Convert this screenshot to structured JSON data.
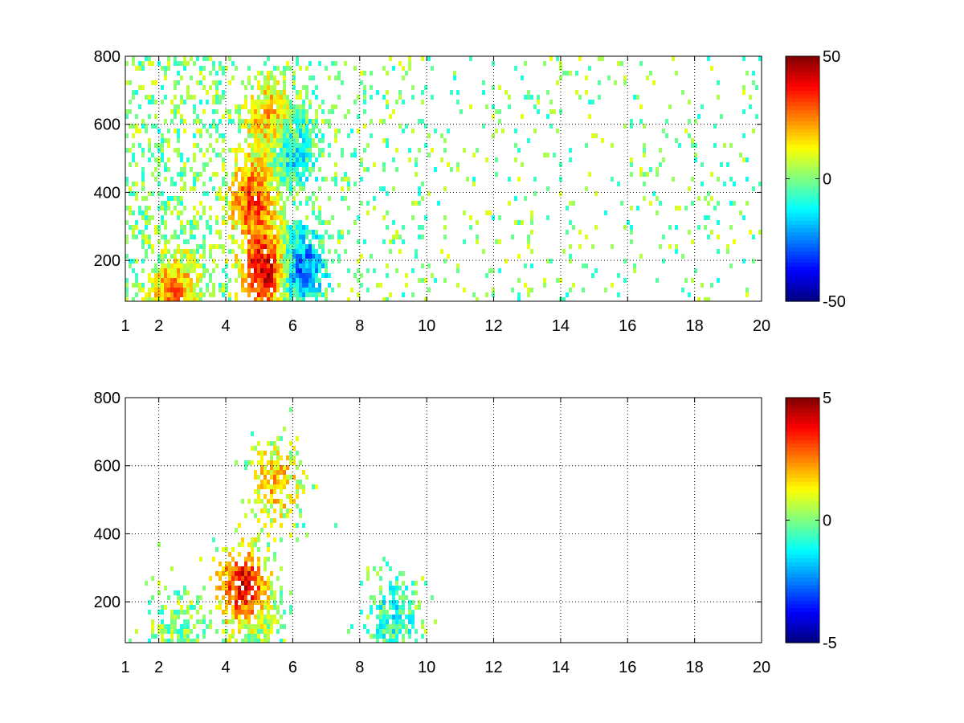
{
  "chart_data": [
    {
      "type": "heatmap",
      "title": "",
      "xlabel": "",
      "ylabel": "",
      "xlim": [
        1,
        20
      ],
      "ylim": [
        80,
        800
      ],
      "grid": true,
      "xticks": [
        1,
        2,
        4,
        6,
        8,
        10,
        12,
        14,
        16,
        18,
        20
      ],
      "xtick_labels": [
        "1",
        "2",
        "4",
        "6",
        "8",
        "10",
        "12",
        "14",
        "16",
        "18",
        "20"
      ],
      "yticks": [
        200,
        400,
        600,
        800
      ],
      "ytick_labels": [
        "200",
        "400",
        "600",
        "800"
      ],
      "colorbar": {
        "colormap": "jet",
        "range": [
          -50,
          50
        ],
        "ticks": [
          -50,
          0,
          50
        ],
        "tick_labels": [
          "-50",
          "0",
          "50"
        ],
        "placement": "right"
      },
      "features": [
        {
          "x": 5.2,
          "y": 170,
          "value": 45
        },
        {
          "x": 4.8,
          "y": 380,
          "value": 30
        },
        {
          "x": 5.3,
          "y": 620,
          "value": 20
        },
        {
          "x": 6.2,
          "y": 180,
          "value": -30
        },
        {
          "x": 6.0,
          "y": 520,
          "value": -15
        },
        {
          "x": 2.5,
          "y": 95,
          "value": 25
        }
      ]
    },
    {
      "type": "heatmap",
      "title": "",
      "xlabel": "",
      "ylabel": "",
      "xlim": [
        1,
        20
      ],
      "ylim": [
        80,
        800
      ],
      "grid": true,
      "xticks": [
        1,
        2,
        4,
        6,
        8,
        10,
        12,
        14,
        16,
        18,
        20
      ],
      "xtick_labels": [
        "1",
        "2",
        "4",
        "6",
        "8",
        "10",
        "12",
        "14",
        "16",
        "18",
        "20"
      ],
      "yticks": [
        200,
        400,
        600,
        800
      ],
      "ytick_labels": [
        "200",
        "400",
        "600",
        "800"
      ],
      "colorbar": {
        "colormap": "jet",
        "range": [
          -5,
          5
        ],
        "ticks": [
          -5,
          0,
          5
        ],
        "tick_labels": [
          "-5",
          "0",
          "5"
        ],
        "placement": "right"
      },
      "features": [
        {
          "x": 4.5,
          "y": 250,
          "value": 4
        },
        {
          "x": 5.5,
          "y": 550,
          "value": 2
        },
        {
          "x": 5.0,
          "y": 150,
          "value": 0
        },
        {
          "x": 9.0,
          "y": 160,
          "value": -1
        },
        {
          "x": 2.5,
          "y": 95,
          "value": 0
        }
      ]
    }
  ]
}
